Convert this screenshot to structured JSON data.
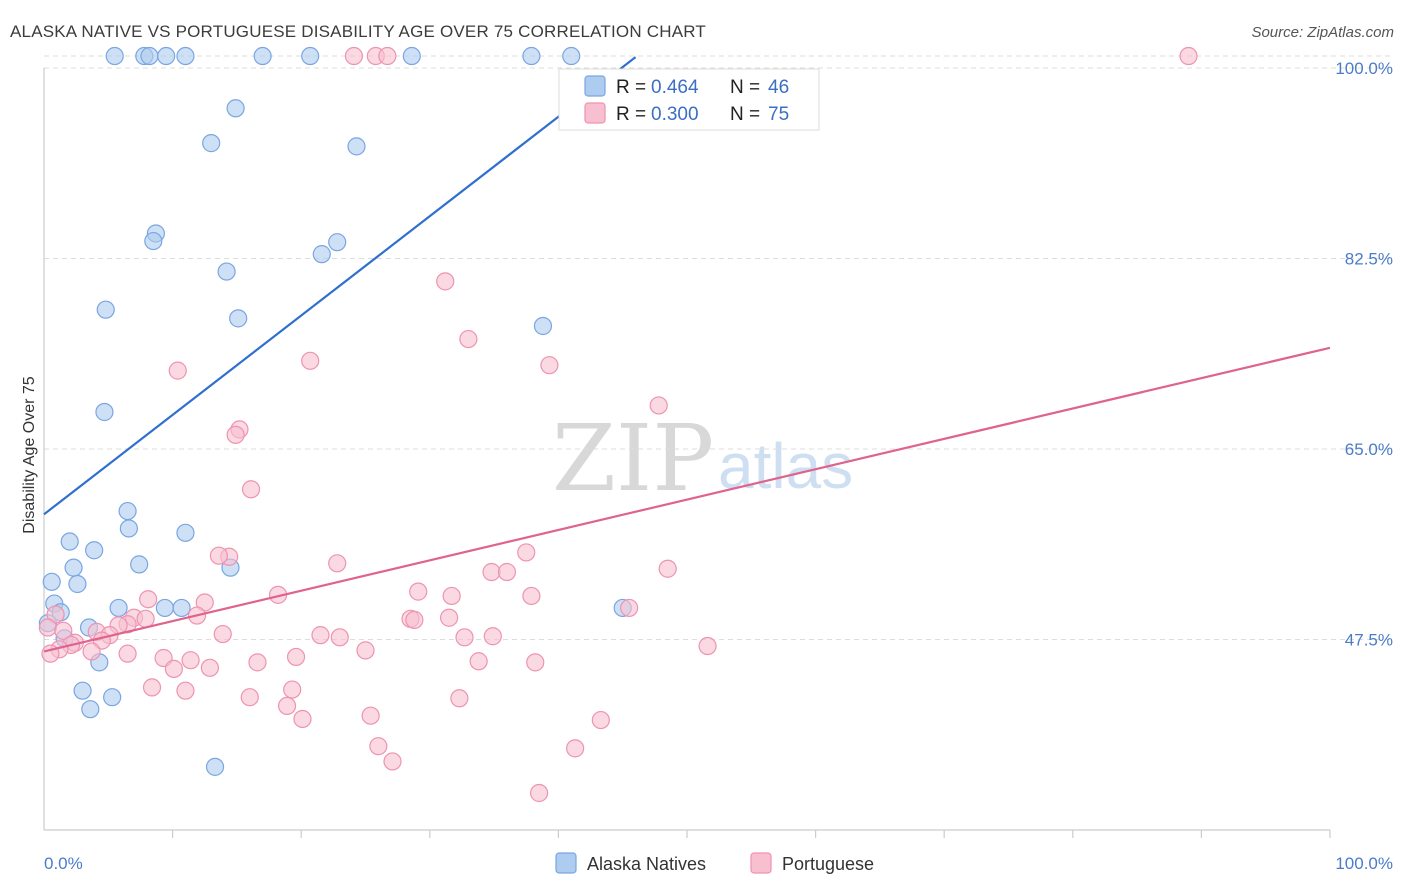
{
  "title": "ALASKA NATIVE VS PORTUGUESE DISABILITY AGE OVER 75 CORRELATION CHART",
  "source": "Source: ZipAtlas.com",
  "watermark": {
    "part1": "ZIP",
    "part2": "atlas"
  },
  "colors": {
    "blue_fill": "#aecbf0",
    "blue_stroke": "#7aa6e0",
    "blue_line": "#2f6fce",
    "pink_fill": "#f7bfd0",
    "pink_stroke": "#ee93b1",
    "pink_line": "#e0628e",
    "tick_text": "#4a7cc9",
    "grid": "#dddddd"
  },
  "legend": {
    "rows": [
      {
        "r_label": "R = ",
        "r_value": "0.464",
        "n_label": "N = ",
        "n_value": "46"
      },
      {
        "r_label": "R = ",
        "r_value": "0.300",
        "n_label": "N = ",
        "n_value": "75"
      }
    ]
  },
  "bottom_legend": {
    "items": [
      "Alaska Natives",
      "Portuguese"
    ]
  },
  "chart_data": {
    "type": "scatter",
    "title": "ALASKA NATIVE VS PORTUGUESE DISABILITY AGE OVER 75 CORRELATION CHART",
    "xlabel": "",
    "ylabel": "Disability Age Over 75",
    "xlim": [
      0,
      100
    ],
    "ylim": [
      30,
      100
    ],
    "y_ticks": [
      47.5,
      65.0,
      82.5,
      100.0
    ],
    "y_tick_labels": [
      "47.5%",
      "65.0%",
      "82.5%",
      "100.0%"
    ],
    "x_tick_labels": [
      "0.0%",
      "100.0%"
    ],
    "series": [
      {
        "name": "Alaska Natives",
        "r": 0.464,
        "n": 46,
        "trend": {
          "x": [
            0,
            46
          ],
          "y": [
            59.0,
            101.0
          ]
        },
        "points": [
          [
            5.5,
            101.1
          ],
          [
            7.8,
            101.1
          ],
          [
            8.2,
            101.1
          ],
          [
            9.5,
            101.1
          ],
          [
            11.0,
            101.1
          ],
          [
            17.0,
            101.1
          ],
          [
            20.7,
            101.1
          ],
          [
            28.6,
            101.1
          ],
          [
            37.9,
            101.1
          ],
          [
            41.0,
            101.1
          ],
          [
            14.9,
            96.3
          ],
          [
            13.0,
            93.1
          ],
          [
            24.3,
            92.8
          ],
          [
            8.7,
            84.8
          ],
          [
            8.5,
            84.1
          ],
          [
            22.8,
            84.0
          ],
          [
            21.6,
            82.9
          ],
          [
            14.2,
            81.3
          ],
          [
            4.8,
            77.8
          ],
          [
            15.1,
            77.0
          ],
          [
            38.8,
            76.3
          ],
          [
            4.7,
            68.4
          ],
          [
            6.5,
            59.3
          ],
          [
            6.6,
            57.7
          ],
          [
            11.0,
            57.3
          ],
          [
            2.0,
            56.5
          ],
          [
            3.9,
            55.7
          ],
          [
            2.3,
            54.1
          ],
          [
            7.4,
            54.4
          ],
          [
            14.5,
            54.1
          ],
          [
            0.6,
            52.8
          ],
          [
            2.6,
            52.6
          ],
          [
            0.8,
            50.8
          ],
          [
            1.3,
            50.0
          ],
          [
            5.8,
            50.4
          ],
          [
            9.4,
            50.4
          ],
          [
            10.7,
            50.4
          ],
          [
            0.3,
            49.0
          ],
          [
            3.5,
            48.6
          ],
          [
            1.6,
            47.6
          ],
          [
            4.3,
            45.4
          ],
          [
            3.0,
            42.8
          ],
          [
            5.3,
            42.2
          ],
          [
            3.6,
            41.1
          ],
          [
            13.3,
            35.8
          ],
          [
            45.0,
            50.4
          ]
        ]
      },
      {
        "name": "Portuguese",
        "r": 0.3,
        "n": 75,
        "trend": {
          "x": [
            0,
            100
          ],
          "y": [
            46.4,
            74.3
          ]
        },
        "points": [
          [
            24.1,
            101.1
          ],
          [
            25.8,
            101.1
          ],
          [
            26.7,
            101.1
          ],
          [
            89.0,
            101.1
          ],
          [
            31.2,
            80.4
          ],
          [
            33.0,
            75.1
          ],
          [
            20.7,
            73.1
          ],
          [
            39.3,
            72.7
          ],
          [
            10.4,
            72.2
          ],
          [
            47.8,
            69.0
          ],
          [
            15.2,
            66.8
          ],
          [
            14.9,
            66.3
          ],
          [
            16.1,
            61.3
          ],
          [
            14.4,
            55.1
          ],
          [
            13.6,
            55.2
          ],
          [
            37.5,
            55.5
          ],
          [
            22.8,
            54.5
          ],
          [
            34.8,
            53.7
          ],
          [
            36.0,
            53.7
          ],
          [
            48.5,
            54.0
          ],
          [
            29.1,
            51.9
          ],
          [
            18.2,
            51.6
          ],
          [
            31.7,
            51.5
          ],
          [
            37.9,
            51.5
          ],
          [
            8.1,
            51.2
          ],
          [
            12.5,
            50.9
          ],
          [
            45.5,
            50.4
          ],
          [
            0.9,
            49.8
          ],
          [
            7.0,
            49.5
          ],
          [
            7.9,
            49.4
          ],
          [
            11.9,
            49.7
          ],
          [
            28.5,
            49.4
          ],
          [
            28.8,
            49.3
          ],
          [
            31.5,
            49.5
          ],
          [
            6.5,
            48.9
          ],
          [
            5.8,
            48.8
          ],
          [
            0.3,
            48.6
          ],
          [
            1.5,
            48.3
          ],
          [
            4.1,
            48.2
          ],
          [
            5.1,
            47.9
          ],
          [
            13.9,
            48.0
          ],
          [
            21.5,
            47.9
          ],
          [
            23.0,
            47.7
          ],
          [
            32.7,
            47.7
          ],
          [
            34.9,
            47.8
          ],
          [
            2.4,
            47.2
          ],
          [
            2.1,
            47.0
          ],
          [
            4.5,
            47.4
          ],
          [
            1.2,
            46.6
          ],
          [
            0.5,
            46.2
          ],
          [
            3.7,
            46.4
          ],
          [
            25.0,
            46.5
          ],
          [
            6.5,
            46.2
          ],
          [
            19.6,
            45.9
          ],
          [
            9.3,
            45.8
          ],
          [
            11.4,
            45.6
          ],
          [
            16.6,
            45.4
          ],
          [
            33.8,
            45.5
          ],
          [
            38.2,
            45.4
          ],
          [
            10.1,
            44.8
          ],
          [
            12.9,
            44.9
          ],
          [
            51.6,
            46.9
          ],
          [
            8.4,
            43.1
          ],
          [
            11.0,
            42.8
          ],
          [
            19.3,
            42.9
          ],
          [
            16.0,
            42.2
          ],
          [
            32.3,
            42.1
          ],
          [
            18.9,
            41.4
          ],
          [
            25.4,
            40.5
          ],
          [
            20.1,
            40.2
          ],
          [
            43.3,
            40.1
          ],
          [
            26.0,
            37.7
          ],
          [
            27.1,
            36.3
          ],
          [
            41.3,
            37.5
          ],
          [
            38.5,
            33.4
          ]
        ]
      }
    ]
  }
}
